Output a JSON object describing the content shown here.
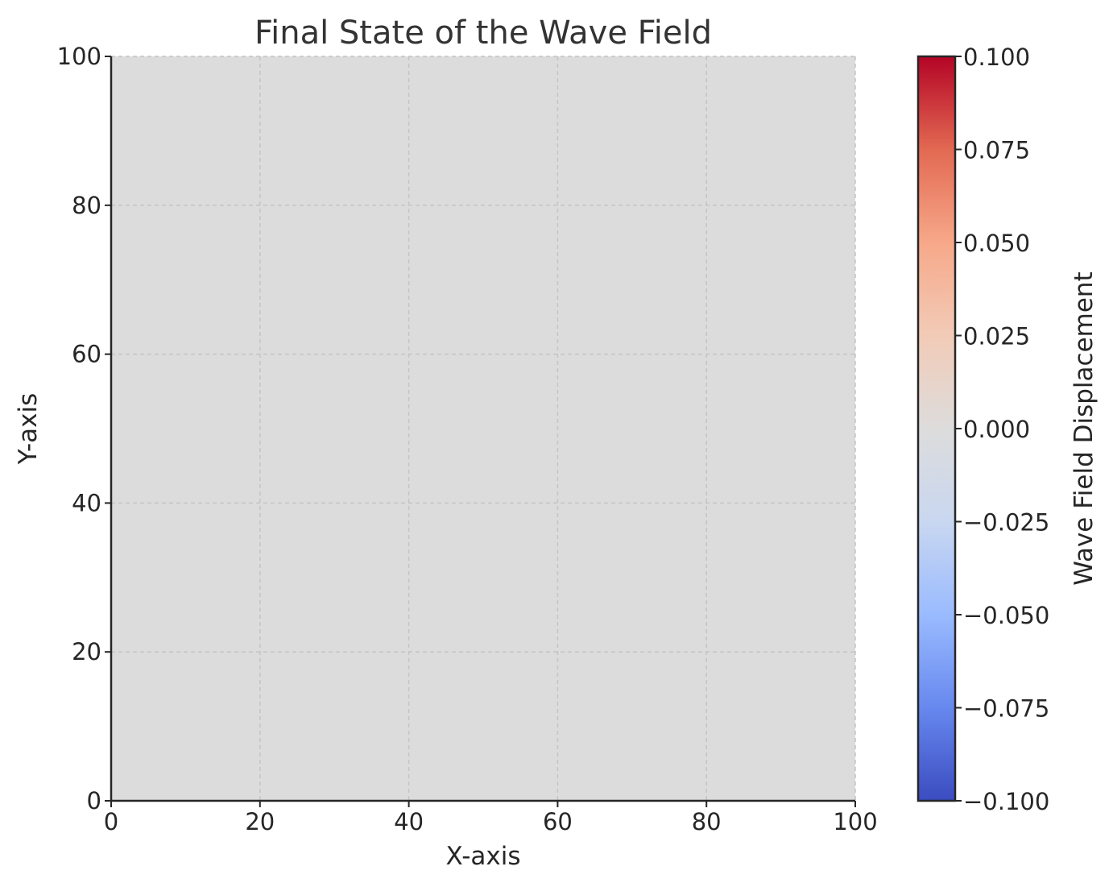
{
  "chart_data": {
    "type": "heatmap",
    "title": "Final State of the Wave Field",
    "xlabel": "X-axis",
    "ylabel": "Y-axis",
    "xlim": [
      0,
      100
    ],
    "ylim": [
      0,
      100
    ],
    "xticks": [
      0,
      20,
      40,
      60,
      80,
      100
    ],
    "yticks": [
      0,
      20,
      40,
      60,
      80,
      100
    ],
    "grid": true,
    "field": {
      "description_value": 0.0,
      "uniform_value": 0.0
    },
    "colorbar": {
      "label": "Wave Field Displacement",
      "colormap": "coolwarm",
      "vmin": -0.1,
      "vmax": 0.1,
      "ticks": [
        -0.1,
        -0.075,
        -0.05,
        -0.025,
        0.0,
        0.025,
        0.05,
        0.075,
        0.1
      ],
      "tick_labels": [
        "−0.100",
        "−0.075",
        "−0.050",
        "−0.025",
        "0.000",
        "0.025",
        "0.050",
        "0.075",
        "0.100"
      ],
      "stops": [
        "#3b4cc0",
        "#6788ee",
        "#9abbff",
        "#c9d7f0",
        "#dddcdc",
        "#f2cbb7",
        "#f7a889",
        "#e26952",
        "#b40426"
      ]
    },
    "field_color": "#dddcdc"
  }
}
